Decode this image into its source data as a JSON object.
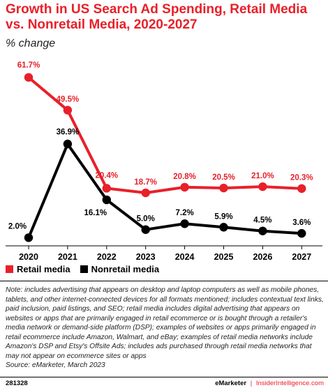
{
  "header": {
    "title": "Growth in US Search Ad Spending, Retail Media vs. Nonretail Media, 2020-2027",
    "subtitle": "% change"
  },
  "colors": {
    "retail": "#e8202a",
    "nonretail": "#000000",
    "title": "#e8202a"
  },
  "chart_data": {
    "type": "line",
    "title": "Growth in US Search Ad Spending, Retail Media vs. Nonretail Media, 2020-2027",
    "subtitle": "% change",
    "categories": [
      "2020",
      "2021",
      "2022",
      "2023",
      "2024",
      "2025",
      "2026",
      "2027"
    ],
    "series": [
      {
        "name": "Retail media",
        "color": "#e8202a",
        "values": [
          61.7,
          49.5,
          20.4,
          18.7,
          20.8,
          20.5,
          21.0,
          20.3
        ],
        "labels": [
          "61.7%",
          "49.5%",
          "20.4%",
          "18.7%",
          "20.8%",
          "20.5%",
          "21.0%",
          "20.3%"
        ]
      },
      {
        "name": "Nonretail media",
        "color": "#000000",
        "values": [
          2.0,
          36.9,
          16.1,
          5.0,
          7.2,
          5.9,
          4.5,
          3.6
        ],
        "labels": [
          "2.0%",
          "36.9%",
          "16.1%",
          "5.0%",
          "7.2%",
          "5.9%",
          "4.5%",
          "3.6%"
        ]
      }
    ],
    "ylim": [
      0,
      62
    ],
    "grid": false,
    "legend": "bottom-left"
  },
  "legend": {
    "retail": "Retail media",
    "nonretail": "Nonretail media"
  },
  "note": "Note: includes advertising that appears on desktop and laptop computers as well as mobile phones, tablets, and other internet-connected devices for all formats mentioned; includes contextual text links, paid inclusion, paid listings, and SEO; retail media includes digital advertising that appears on websites or apps that are primarily engaged in retail ecommerce or is bought through a retailer's media network or demand-side platform (DSP); examples of websites or apps primarily engaged in retail ecommerce include Amazon, Walmart, and eBay; examples of retail media networks include Amazon's DSP and Etsy's Offsite Ads; includes ads purchased through retail media networks that may not appear on ecommerce sites or apps",
  "source": "Source: eMarketer, March 2023",
  "footer": {
    "id": "281328",
    "brand": "eMarketer",
    "separator": "|",
    "site": "InsiderIntelligence.com"
  }
}
